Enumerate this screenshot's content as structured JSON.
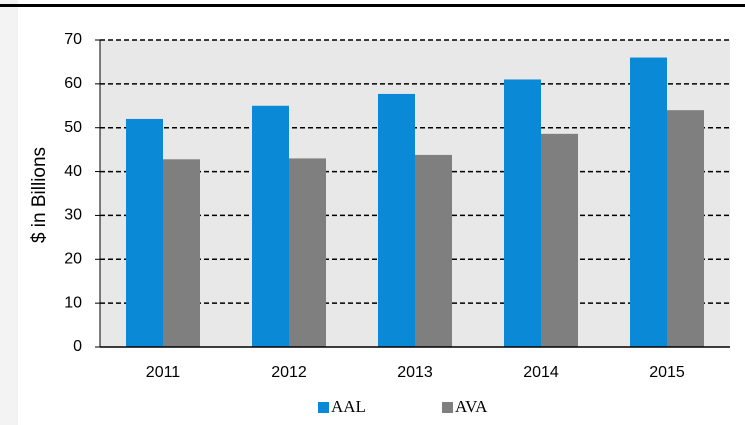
{
  "chart_data": {
    "type": "bar",
    "y_label": "$ in Billions",
    "categories": [
      "2011",
      "2012",
      "2013",
      "2014",
      "2015"
    ],
    "series": [
      {
        "name": "AAL",
        "color": "#0a8ad6",
        "values": [
          52,
          55,
          57.7,
          61,
          66
        ]
      },
      {
        "name": "AVA",
        "color": "#7f7f7f",
        "values": [
          42.8,
          43,
          43.8,
          48.6,
          54
        ]
      }
    ],
    "ylim": [
      0,
      70
    ],
    "yticks": [
      0,
      10,
      20,
      30,
      40,
      50,
      60,
      70
    ],
    "grid": true,
    "legend": "bottom"
  }
}
